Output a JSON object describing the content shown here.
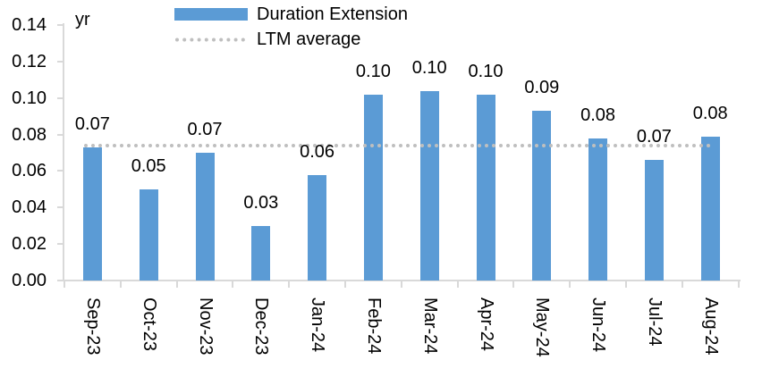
{
  "chart_data": {
    "type": "bar",
    "title": "",
    "axis_unit_label": "yr",
    "categories": [
      "Sep-23",
      "Oct-23",
      "Nov-23",
      "Dec-23",
      "Jan-24",
      "Feb-24",
      "Mar-24",
      "Apr-24",
      "May-24",
      "Jun-24",
      "Jul-24",
      "Aug-24"
    ],
    "series": [
      {
        "name": "Duration Extension",
        "color": "#5B9BD5",
        "values": [
          0.073,
          0.05,
          0.07,
          0.03,
          0.058,
          0.102,
          0.104,
          0.102,
          0.093,
          0.078,
          0.066,
          0.079
        ],
        "data_labels": [
          "0.07",
          "0.05",
          "0.07",
          "0.03",
          "0.06",
          "0.10",
          "0.10",
          "0.10",
          "0.09",
          "0.08",
          "0.07",
          "0.08"
        ]
      }
    ],
    "reference_line": {
      "name": "LTM average",
      "value": 0.074,
      "style": "dotted",
      "color": "#BFBFBF"
    },
    "y_axis": {
      "min": 0,
      "max": 0.14,
      "tick_step": 0.02,
      "tick_labels": [
        "0.00",
        "0.02",
        "0.04",
        "0.06",
        "0.08",
        "0.10",
        "0.12",
        "0.14"
      ]
    },
    "x_axis": {
      "label_rotation_deg": 90
    },
    "legend": {
      "position": "top",
      "entries": [
        {
          "label": "Duration Extension",
          "marker": "bar-swatch",
          "color": "#5B9BD5"
        },
        {
          "label": "LTM average",
          "marker": "dotted-line",
          "color": "#BFBFBF"
        }
      ]
    },
    "grid": false,
    "colors": {
      "axis_line": "#D9D9D9",
      "text": "#000000",
      "background": "#FFFFFF"
    }
  }
}
